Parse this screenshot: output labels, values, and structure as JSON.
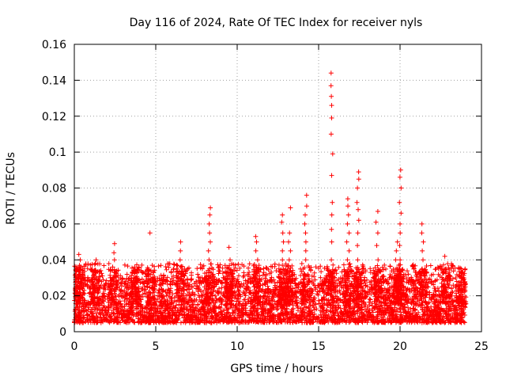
{
  "chart_data": {
    "type": "scatter",
    "title": "Day 116 of 2024, Rate Of TEC Index for receiver nyls",
    "xlabel": "GPS time / hours",
    "ylabel": "ROTI / TECUs",
    "xlim": [
      0,
      25
    ],
    "ylim": [
      0,
      0.16
    ],
    "x_ticks": [
      0,
      5,
      10,
      15,
      20,
      25
    ],
    "y_ticks": [
      0,
      0.02,
      0.04,
      0.06,
      0.08,
      0.1,
      0.12,
      0.14,
      0.16
    ],
    "x_tick_labels": [
      "0",
      "5",
      "10",
      "15",
      "20",
      "25"
    ],
    "y_tick_labels": [
      "0",
      "0.02",
      "0.04",
      "0.06",
      "0.08",
      "0.1",
      "0.12",
      "0.14",
      "0.16"
    ],
    "grid": true,
    "marker": "+",
    "color": "#ff0000",
    "series": [
      {
        "name": "ROTI",
        "note": "dense band of points between roughly 0.005 and 0.03 TECU/min across 0-24 h; notable spikes listed below",
        "band": {
          "x_range": [
            0,
            24
          ],
          "y_range": [
            0.005,
            0.03
          ]
        },
        "spikes": [
          {
            "x": 0.3,
            "y": [
              0.03,
              0.032,
              0.035,
              0.037,
              0.04,
              0.043
            ]
          },
          {
            "x": 1.3,
            "y": [
              0.03,
              0.034,
              0.038,
              0.04
            ]
          },
          {
            "x": 2.4,
            "y": [
              0.033,
              0.036,
              0.04,
              0.044,
              0.049
            ]
          },
          {
            "x": 3.7,
            "y": [
              0.03,
              0.033,
              0.036
            ]
          },
          {
            "x": 4.7,
            "y": [
              0.055
            ]
          },
          {
            "x": 6.5,
            "y": [
              0.032,
              0.036,
              0.04,
              0.045,
              0.05
            ]
          },
          {
            "x": 8.3,
            "y": [
              0.035,
              0.04,
              0.045,
              0.05,
              0.055,
              0.06,
              0.065,
              0.069
            ]
          },
          {
            "x": 9.5,
            "y": [
              0.035,
              0.04,
              0.047
            ]
          },
          {
            "x": 11.2,
            "y": [
              0.035,
              0.04,
              0.045,
              0.05,
              0.053
            ]
          },
          {
            "x": 12.8,
            "y": [
              0.035,
              0.04,
              0.045,
              0.05,
              0.055,
              0.061,
              0.065
            ]
          },
          {
            "x": 13.2,
            "y": [
              0.04,
              0.045,
              0.05,
              0.055,
              0.069
            ]
          },
          {
            "x": 14.2,
            "y": [
              0.04,
              0.045,
              0.05,
              0.055,
              0.06,
              0.065,
              0.07,
              0.076
            ]
          },
          {
            "x": 15.8,
            "y": [
              0.04,
              0.05,
              0.057,
              0.065,
              0.072,
              0.087,
              0.099,
              0.11,
              0.119,
              0.126,
              0.131,
              0.137,
              0.144
            ]
          },
          {
            "x": 16.8,
            "y": [
              0.04,
              0.045,
              0.05,
              0.055,
              0.06,
              0.065,
              0.07,
              0.074
            ]
          },
          {
            "x": 17.4,
            "y": [
              0.04,
              0.048,
              0.055,
              0.062,
              0.068,
              0.072,
              0.08,
              0.085,
              0.089
            ]
          },
          {
            "x": 18.6,
            "y": [
              0.04,
              0.048,
              0.055,
              0.061,
              0.067
            ]
          },
          {
            "x": 19.8,
            "y": [
              0.035,
              0.04,
              0.045,
              0.05
            ]
          },
          {
            "x": 20.0,
            "y": [
              0.04,
              0.048,
              0.055,
              0.06,
              0.066,
              0.072,
              0.08,
              0.086,
              0.09
            ]
          },
          {
            "x": 21.4,
            "y": [
              0.035,
              0.04,
              0.045,
              0.05,
              0.055,
              0.06
            ]
          },
          {
            "x": 22.8,
            "y": [
              0.035,
              0.042
            ]
          },
          {
            "x": 23.8,
            "y": [
              0.03,
              0.035
            ]
          }
        ]
      }
    ]
  }
}
